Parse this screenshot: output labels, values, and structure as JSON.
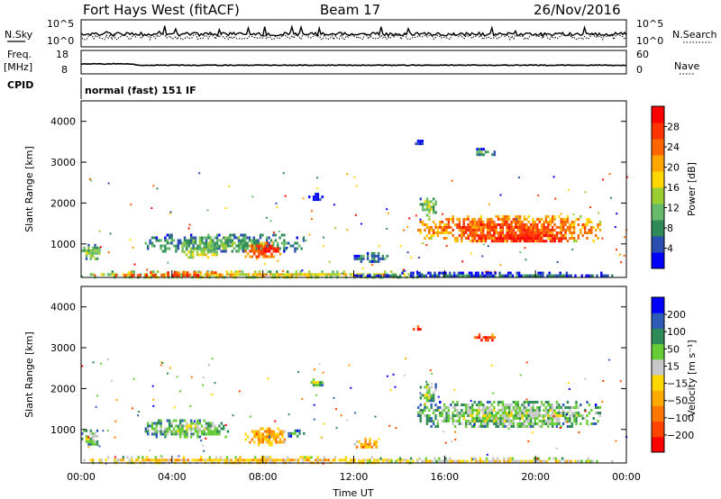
{
  "header": {
    "station": "Fort Hays West (fitACF)",
    "beam": "Beam 17",
    "date": "26/Nov/2016"
  },
  "top_panels": {
    "nsky_label": "N.Sky",
    "nsky_ticks": [
      "10^5",
      "10^0"
    ],
    "nsearch_label": "N.Search",
    "freq_label": "Freq.",
    "freq_unit": "[MHz]",
    "freq_ticks": [
      "18",
      "8"
    ],
    "nave_ticks": [
      "60",
      "0"
    ],
    "nave_label": "Nave",
    "cpid_label": "CPID",
    "cpid_value": "normal (fast) 151 IF"
  },
  "colors": {
    "power_scale": [
      "#0000ff",
      "#2a4fb0",
      "#2e8b57",
      "#66bb6a",
      "#9acd32",
      "#ffd700",
      "#ffa500",
      "#ff6600",
      "#ff3300",
      "#ff0000"
    ],
    "velocity_scale": [
      "#0000ff",
      "#2e5cb8",
      "#2e8b57",
      "#66cc33",
      "#c8c8c8",
      "#ffd700",
      "#ffaa00",
      "#ff7700",
      "#ff4400",
      "#ff0000"
    ]
  },
  "chart_data": [
    {
      "type": "heatmap",
      "name": "power",
      "ylabel": "Slant Range [km]",
      "yticks": [
        "4000",
        "3000",
        "2000",
        "1000"
      ],
      "colorbar_label": "Power [dB]",
      "colorbar_ticks": [
        "28",
        "24",
        "20",
        "16",
        "12",
        "8",
        "4"
      ],
      "xlim": [
        0,
        24
      ],
      "ylim": [
        180,
        4500
      ],
      "blobs": [
        {
          "x0": 0.0,
          "x1": 15.0,
          "y0": 200,
          "y1": 350,
          "level": 0.55
        },
        {
          "x0": 1.5,
          "x1": 7.0,
          "y0": 250,
          "y1": 330,
          "level": 0.92
        },
        {
          "x0": 0.0,
          "x1": 0.8,
          "y0": 650,
          "y1": 1000,
          "level": 0.45
        },
        {
          "x0": 2.8,
          "x1": 9.8,
          "y0": 830,
          "y1": 1250,
          "level": 0.35
        },
        {
          "x0": 7.2,
          "x1": 8.8,
          "y0": 700,
          "y1": 1050,
          "level": 0.85
        },
        {
          "x0": 4.5,
          "x1": 6.0,
          "y0": 700,
          "y1": 900,
          "level": 0.55
        },
        {
          "x0": 12.0,
          "x1": 13.5,
          "y0": 600,
          "y1": 800,
          "level": 0.3
        },
        {
          "x0": 14.8,
          "x1": 22.8,
          "y0": 1100,
          "y1": 1700,
          "level": 0.8
        },
        {
          "x0": 17.0,
          "x1": 21.5,
          "y0": 1050,
          "y1": 1300,
          "level": 0.95
        },
        {
          "x0": 14.9,
          "x1": 15.6,
          "y0": 1700,
          "y1": 2200,
          "level": 0.45
        },
        {
          "x0": 17.2,
          "x1": 18.2,
          "y0": 3200,
          "y1": 3350,
          "level": 0.3
        },
        {
          "x0": 14.6,
          "x1": 15.0,
          "y0": 3450,
          "y1": 3550,
          "level": 0.2
        },
        {
          "x0": 10.0,
          "x1": 10.6,
          "y0": 2100,
          "y1": 2250,
          "level": 0.1
        },
        {
          "x0": 17.5,
          "x1": 18.3,
          "y0": 280,
          "y1": 340,
          "level": 0.9
        },
        {
          "x0": 12.0,
          "x1": 23.5,
          "y0": 200,
          "y1": 320,
          "level": 0.2
        }
      ]
    },
    {
      "type": "heatmap",
      "name": "velocity",
      "ylabel": "Slant Range [km]",
      "yticks": [
        "4000",
        "3000",
        "2000",
        "1000"
      ],
      "colorbar_label": "Velocity [m s⁻¹]",
      "colorbar_ticks": [
        "200",
        "100",
        "50",
        "15",
        "−15",
        "−50",
        "−100",
        "−200"
      ],
      "xlim": [
        0,
        24
      ],
      "ylim": [
        180,
        4500
      ],
      "xticks": [
        "00:00",
        "04:00",
        "08:00",
        "12:00",
        "16:00",
        "20:00",
        "00:00"
      ],
      "xlabel": "Time UT",
      "blobs": [
        {
          "x0": 0.0,
          "x1": 15.0,
          "y0": 200,
          "y1": 350,
          "level": 0.62
        },
        {
          "x0": 0.0,
          "x1": 0.8,
          "y0": 650,
          "y1": 1000,
          "level": 0.42
        },
        {
          "x0": 2.8,
          "x1": 6.5,
          "y0": 830,
          "y1": 1250,
          "level": 0.42
        },
        {
          "x0": 7.2,
          "x1": 9.0,
          "y0": 650,
          "y1": 1050,
          "level": 0.72
        },
        {
          "x0": 9.0,
          "x1": 9.8,
          "y0": 850,
          "y1": 1000,
          "level": 0.3
        },
        {
          "x0": 12.0,
          "x1": 13.0,
          "y0": 550,
          "y1": 800,
          "level": 0.72
        },
        {
          "x0": 14.8,
          "x1": 22.8,
          "y0": 1050,
          "y1": 1700,
          "level": 0.42
        },
        {
          "x0": 14.9,
          "x1": 15.6,
          "y0": 1700,
          "y1": 2200,
          "level": 0.42
        },
        {
          "x0": 17.2,
          "x1": 18.2,
          "y0": 3200,
          "y1": 3350,
          "level": 0.95
        },
        {
          "x0": 14.6,
          "x1": 15.0,
          "y0": 3450,
          "y1": 3550,
          "level": 0.95
        },
        {
          "x0": 10.0,
          "x1": 10.6,
          "y0": 2100,
          "y1": 2250,
          "level": 0.42
        },
        {
          "x0": 12.0,
          "x1": 23.5,
          "y0": 200,
          "y1": 320,
          "level": 0.55
        }
      ]
    }
  ]
}
